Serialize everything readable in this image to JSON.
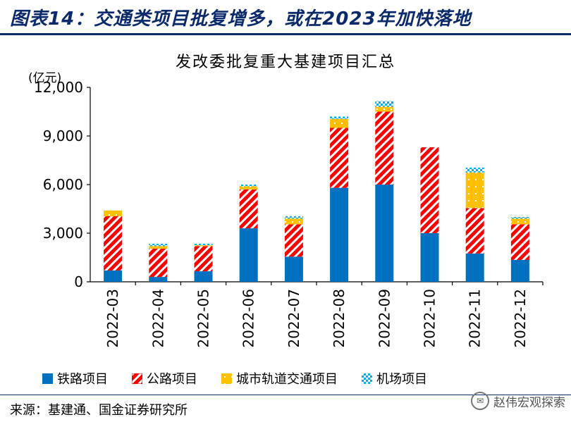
{
  "figure": {
    "title": "图表14：交通类项目批复增多，或在2023年加快落地",
    "source": "来源：基建通、国金证券研究所",
    "watermark": "赵伟宏观探索"
  },
  "colors": {
    "header_blue": "#0b2a6b",
    "railway": "#0070c0",
    "highway": "#ff0000",
    "urban_rail": "#ffc000",
    "airport": "#00b0f0"
  },
  "chart_data": {
    "type": "bar",
    "stacked": true,
    "title": "发改委批复重大基建项目汇总",
    "ylabel": "(亿元)",
    "ylim": [
      0,
      12000
    ],
    "yticks": [
      0,
      3000,
      6000,
      9000,
      12000
    ],
    "ytick_labels": [
      "0",
      "3,000",
      "6,000",
      "9,000",
      "12,000"
    ],
    "categories": [
      "2022-03",
      "2022-04",
      "2022-05",
      "2022-06",
      "2022-07",
      "2022-08",
      "2022-09",
      "2022-10",
      "2022-11",
      "2022-12"
    ],
    "series": [
      {
        "name": "铁路项目",
        "values": [
          700,
          300,
          650,
          3300,
          1550,
          5800,
          6000,
          3000,
          1750,
          1350
        ],
        "color": "#0070c0",
        "pattern": "solid"
      },
      {
        "name": "公路项目",
        "values": [
          3350,
          1750,
          1550,
          2400,
          2000,
          3700,
          4500,
          5300,
          2800,
          2200
        ],
        "color": "#ff0000",
        "pattern": "diagonal-stripes"
      },
      {
        "name": "城市轨道交通项目",
        "values": [
          350,
          150,
          50,
          200,
          350,
          550,
          300,
          0,
          2200,
          350
        ],
        "color": "#ffc000",
        "pattern": "dotted"
      },
      {
        "name": "机场项目",
        "values": [
          0,
          150,
          100,
          100,
          150,
          150,
          350,
          0,
          300,
          100
        ],
        "color": "#00b0f0",
        "pattern": "checker"
      }
    ],
    "legend_position": "bottom",
    "grid": false
  }
}
